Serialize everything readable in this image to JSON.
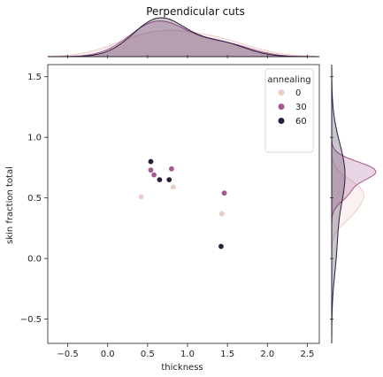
{
  "chart_data": {
    "type": "scatter",
    "title": "Perpendicular cuts",
    "xlabel": "thickness",
    "ylabel": "skin fraction total",
    "xlim": [
      -0.75,
      2.65
    ],
    "ylim": [
      -0.7,
      1.6
    ],
    "xticks": [
      -0.5,
      0.0,
      0.5,
      1.0,
      1.5,
      2.0,
      2.5
    ],
    "xtick_labels": [
      "−0.5",
      "0.0",
      "0.5",
      "1.0",
      "1.5",
      "2.0",
      "2.5"
    ],
    "yticks": [
      -0.5,
      0.0,
      0.5,
      1.0,
      1.5
    ],
    "ytick_labels": [
      "−0.5",
      "0.0",
      "0.5",
      "1.0",
      "1.5"
    ],
    "grid": false,
    "legend": {
      "title": "annealing",
      "placement": "top-right",
      "entries": [
        {
          "label": "0",
          "color": "#eccdc6"
        },
        {
          "label": "30",
          "color": "#a2598e"
        },
        {
          "label": "60",
          "color": "#2b1d3b"
        }
      ]
    },
    "series": [
      {
        "name": "0",
        "color": "#eccdc6",
        "points": [
          [
            0.42,
            0.51
          ],
          [
            0.82,
            0.59
          ],
          [
            1.43,
            0.37
          ]
        ]
      },
      {
        "name": "30",
        "color": "#a2598e",
        "points": [
          [
            0.54,
            0.73
          ],
          [
            0.58,
            0.69
          ],
          [
            0.8,
            0.74
          ],
          [
            1.46,
            0.54
          ]
        ]
      },
      {
        "name": "60",
        "color": "#2b1d3b",
        "points": [
          [
            0.54,
            0.8
          ],
          [
            0.65,
            0.65
          ],
          [
            0.77,
            0.65
          ],
          [
            1.42,
            0.1
          ]
        ]
      }
    ],
    "marginal": {
      "type": "kde",
      "x_top": true,
      "y_right": true
    }
  }
}
